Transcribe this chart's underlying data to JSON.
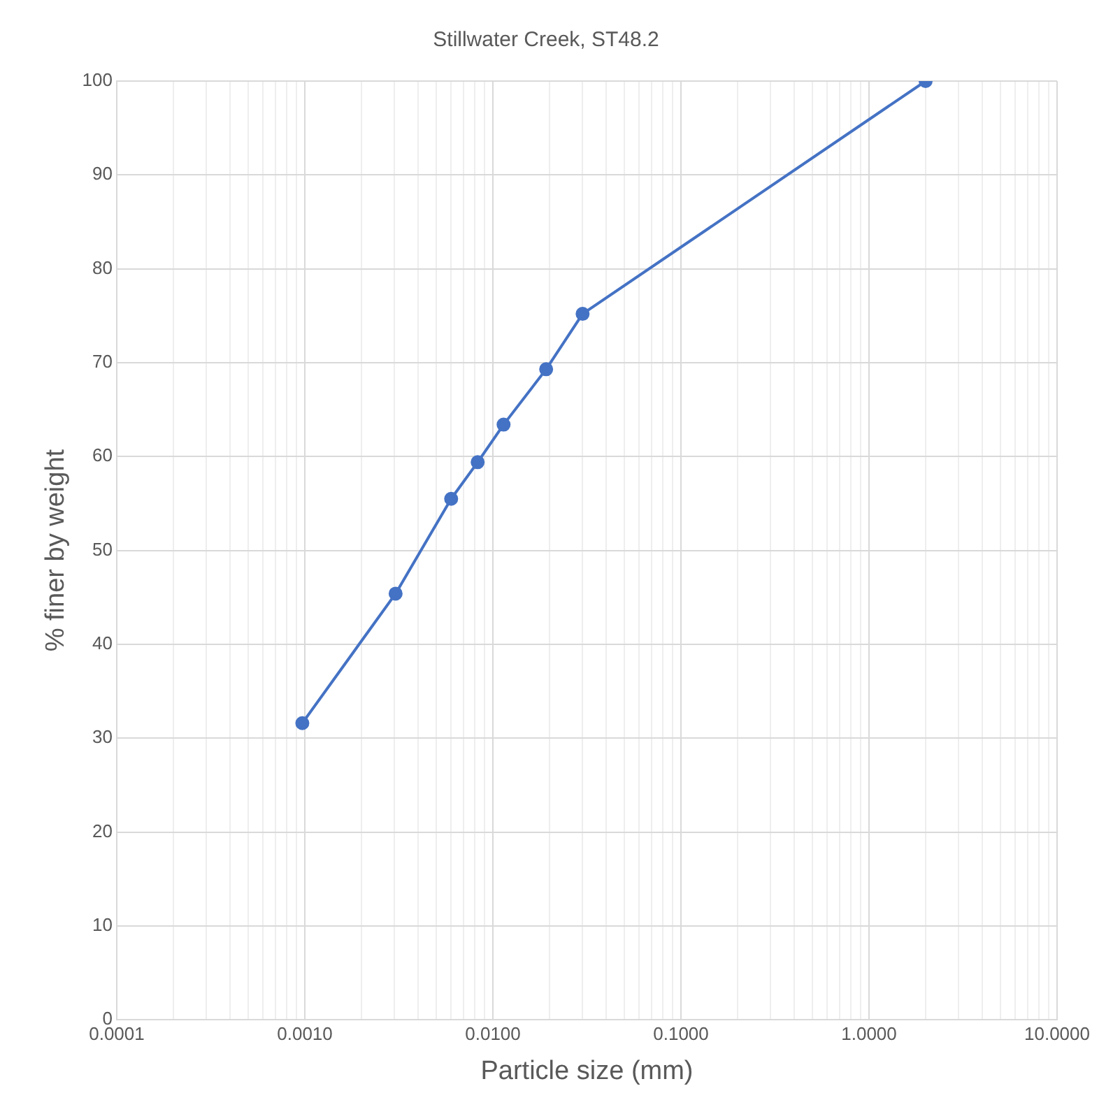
{
  "chart_data": {
    "type": "line",
    "title": "Stillwater Creek, ST48.2",
    "xlabel": "Particle size (mm)",
    "ylabel": "% finer by weight",
    "x": [
      0.00097,
      0.00304,
      0.006,
      0.0083,
      0.0114,
      0.0192,
      0.03,
      2.0
    ],
    "series": [
      {
        "color": "#4472c4",
        "values": [
          31.6,
          45.4,
          55.5,
          59.4,
          63.4,
          69.3,
          75.2,
          100
        ]
      }
    ],
    "log": "x",
    "xlim": [
      0.0001,
      10
    ],
    "ylim": [
      0,
      100
    ],
    "xticks": [
      {
        "value": 0.0001,
        "label": "0.0001"
      },
      {
        "value": 0.0002,
        "label": null
      },
      {
        "value": 0.0003,
        "label": null
      },
      {
        "value": 0.0004,
        "label": null
      },
      {
        "value": 0.0005,
        "label": null
      },
      {
        "value": 0.0006,
        "label": null
      },
      {
        "value": 0.0007,
        "label": null
      },
      {
        "value": 0.0008,
        "label": null
      },
      {
        "value": 0.0009,
        "label": null
      },
      {
        "value": 0.001,
        "label": "0.0010"
      },
      {
        "value": 0.002,
        "label": null
      },
      {
        "value": 0.003,
        "label": null
      },
      {
        "value": 0.004,
        "label": null
      },
      {
        "value": 0.005,
        "label": null
      },
      {
        "value": 0.006,
        "label": null
      },
      {
        "value": 0.007,
        "label": null
      },
      {
        "value": 0.008,
        "label": null
      },
      {
        "value": 0.009,
        "label": null
      },
      {
        "value": 0.01,
        "label": "0.0100"
      },
      {
        "value": 0.02,
        "label": null
      },
      {
        "value": 0.03,
        "label": null
      },
      {
        "value": 0.04,
        "label": null
      },
      {
        "value": 0.05,
        "label": null
      },
      {
        "value": 0.06,
        "label": null
      },
      {
        "value": 0.07,
        "label": null
      },
      {
        "value": 0.08,
        "label": null
      },
      {
        "value": 0.09,
        "label": null
      },
      {
        "value": 0.1,
        "label": "0.1000"
      },
      {
        "value": 0.2,
        "label": null
      },
      {
        "value": 0.3,
        "label": null
      },
      {
        "value": 0.4,
        "label": null
      },
      {
        "value": 0.5,
        "label": null
      },
      {
        "value": 0.6,
        "label": null
      },
      {
        "value": 0.7,
        "label": null
      },
      {
        "value": 0.8,
        "label": null
      },
      {
        "value": 0.9,
        "label": null
      },
      {
        "value": 1,
        "label": "1.0000"
      },
      {
        "value": 2,
        "label": null
      },
      {
        "value": 3,
        "label": null
      },
      {
        "value": 4,
        "label": null
      },
      {
        "value": 5,
        "label": null
      },
      {
        "value": 6,
        "label": null
      },
      {
        "value": 7,
        "label": null
      },
      {
        "value": 8,
        "label": null
      },
      {
        "value": 9,
        "label": null
      },
      {
        "value": 10,
        "label": "10.0000"
      }
    ],
    "yticks": [
      0,
      10,
      20,
      30,
      40,
      50,
      60,
      70,
      80,
      90,
      100
    ],
    "grid": true,
    "legend": false,
    "marker": "circle",
    "line_style": "solid"
  }
}
